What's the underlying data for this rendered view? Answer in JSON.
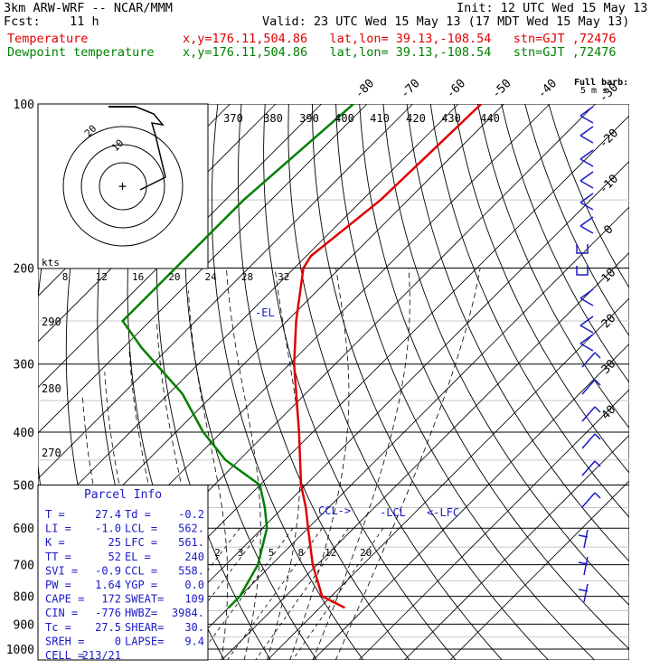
{
  "header": {
    "model": "3km ARW-WRF -- NCAR/MMM",
    "init": "Init: 12 UTC Wed 15 May 13",
    "fcst": "Fcst:    11 h",
    "valid": "Valid: 23 UTC Wed 15 May 13 (17 MDT Wed 15 May 13)",
    "temp_label": "Temperature",
    "dew_label": "Dewpoint temperature",
    "location": "x,y=176.11,504.86   lat,lon= 39.13,-108.54   stn=GJT ,72476"
  },
  "colors": {
    "temperature": "#e00000",
    "dewpoint": "#008000",
    "wind": "#1a1ac8",
    "grid": "#000000"
  },
  "chart_data": {
    "type": "line",
    "title": "",
    "ylabel": "",
    "y_scale": "log",
    "pressure_ticks": [
      100,
      200,
      300,
      400,
      500,
      600,
      700,
      800,
      900,
      1000
    ],
    "isotherm_labels": [
      -80,
      -70,
      -60,
      -50,
      -40,
      -30,
      -20,
      -10,
      0,
      10,
      20,
      30,
      40
    ],
    "theta_labels": [
      270,
      280,
      290,
      370,
      380,
      390,
      400,
      410,
      420,
      430,
      440
    ],
    "mixing_ratio_labels": [
      2,
      3,
      5,
      8,
      12,
      20
    ],
    "series": [
      {
        "name": "Temperature",
        "points": [
          [
            100,
            -55
          ],
          [
            150,
            -56
          ],
          [
            190,
            -59
          ],
          [
            200,
            -58
          ],
          [
            250,
            -48
          ],
          [
            300,
            -39
          ],
          [
            400,
            -23
          ],
          [
            500,
            -11
          ],
          [
            550,
            -5
          ],
          [
            600,
            0
          ],
          [
            700,
            9
          ],
          [
            800,
            18
          ],
          [
            840,
            25.5
          ]
        ]
      },
      {
        "name": "Dewpoint temperature",
        "points": [
          [
            100,
            -83
          ],
          [
            150,
            -86
          ],
          [
            200,
            -86
          ],
          [
            250,
            -86
          ],
          [
            280,
            -76
          ],
          [
            340,
            -57
          ],
          [
            400,
            -44
          ],
          [
            450,
            -33
          ],
          [
            500,
            -20
          ],
          [
            550,
            -14
          ],
          [
            600,
            -9
          ],
          [
            700,
            -3
          ],
          [
            800,
            0
          ],
          [
            840,
            0
          ]
        ]
      }
    ],
    "annotations": {
      "el": "-EL",
      "ccl": "CCL->",
      "lcl": "-LCL",
      "lfc": "<-LFC"
    },
    "hodograph": {
      "unit_label": "kts",
      "ring_labels": [
        "20",
        "10"
      ],
      "speed_ticks": [
        "8",
        "12",
        "16",
        "20",
        "24",
        "28",
        "32"
      ]
    },
    "wind_scale": {
      "label_line1": "Full barb:",
      "label_line2": "5 m s"
    }
  },
  "parcel_info": {
    "title": "Parcel Info",
    "rows": [
      {
        "l1": "T   =",
        "v1": "27.4",
        "l2": "Td =",
        "v2": "-0.2"
      },
      {
        "l1": "LI  =",
        "v1": "-1.0",
        "l2": "LCL =",
        "v2": "562."
      },
      {
        "l1": "K   =",
        "v1": "25",
        "l2": "LFC =",
        "v2": "561."
      },
      {
        "l1": "TT  =",
        "v1": "52",
        "l2": "EL  =",
        "v2": "240"
      },
      {
        "l1": "SVI =",
        "v1": "-0.9",
        "l2": "CCL =",
        "v2": "558."
      },
      {
        "l1": "PW  =",
        "v1": "1.64",
        "l2": "YGP =",
        "v2": "0.0"
      },
      {
        "l1": "CAPE =",
        "v1": "172",
        "l2": "SWEAT=",
        "v2": "109"
      },
      {
        "l1": "CIN  =",
        "v1": "-776",
        "l2": "HWBZ=",
        "v2": "3984."
      },
      {
        "l1": "Tc  =",
        "v1": "27.5",
        "l2": "SHEAR=",
        "v2": "30."
      },
      {
        "l1": "SREH =",
        "v1": "0",
        "l2": "LAPSE=",
        "v2": "9.4"
      },
      {
        "l1": "CELL =",
        "v1": "213/21",
        "l2": "",
        "v2": ""
      }
    ]
  }
}
